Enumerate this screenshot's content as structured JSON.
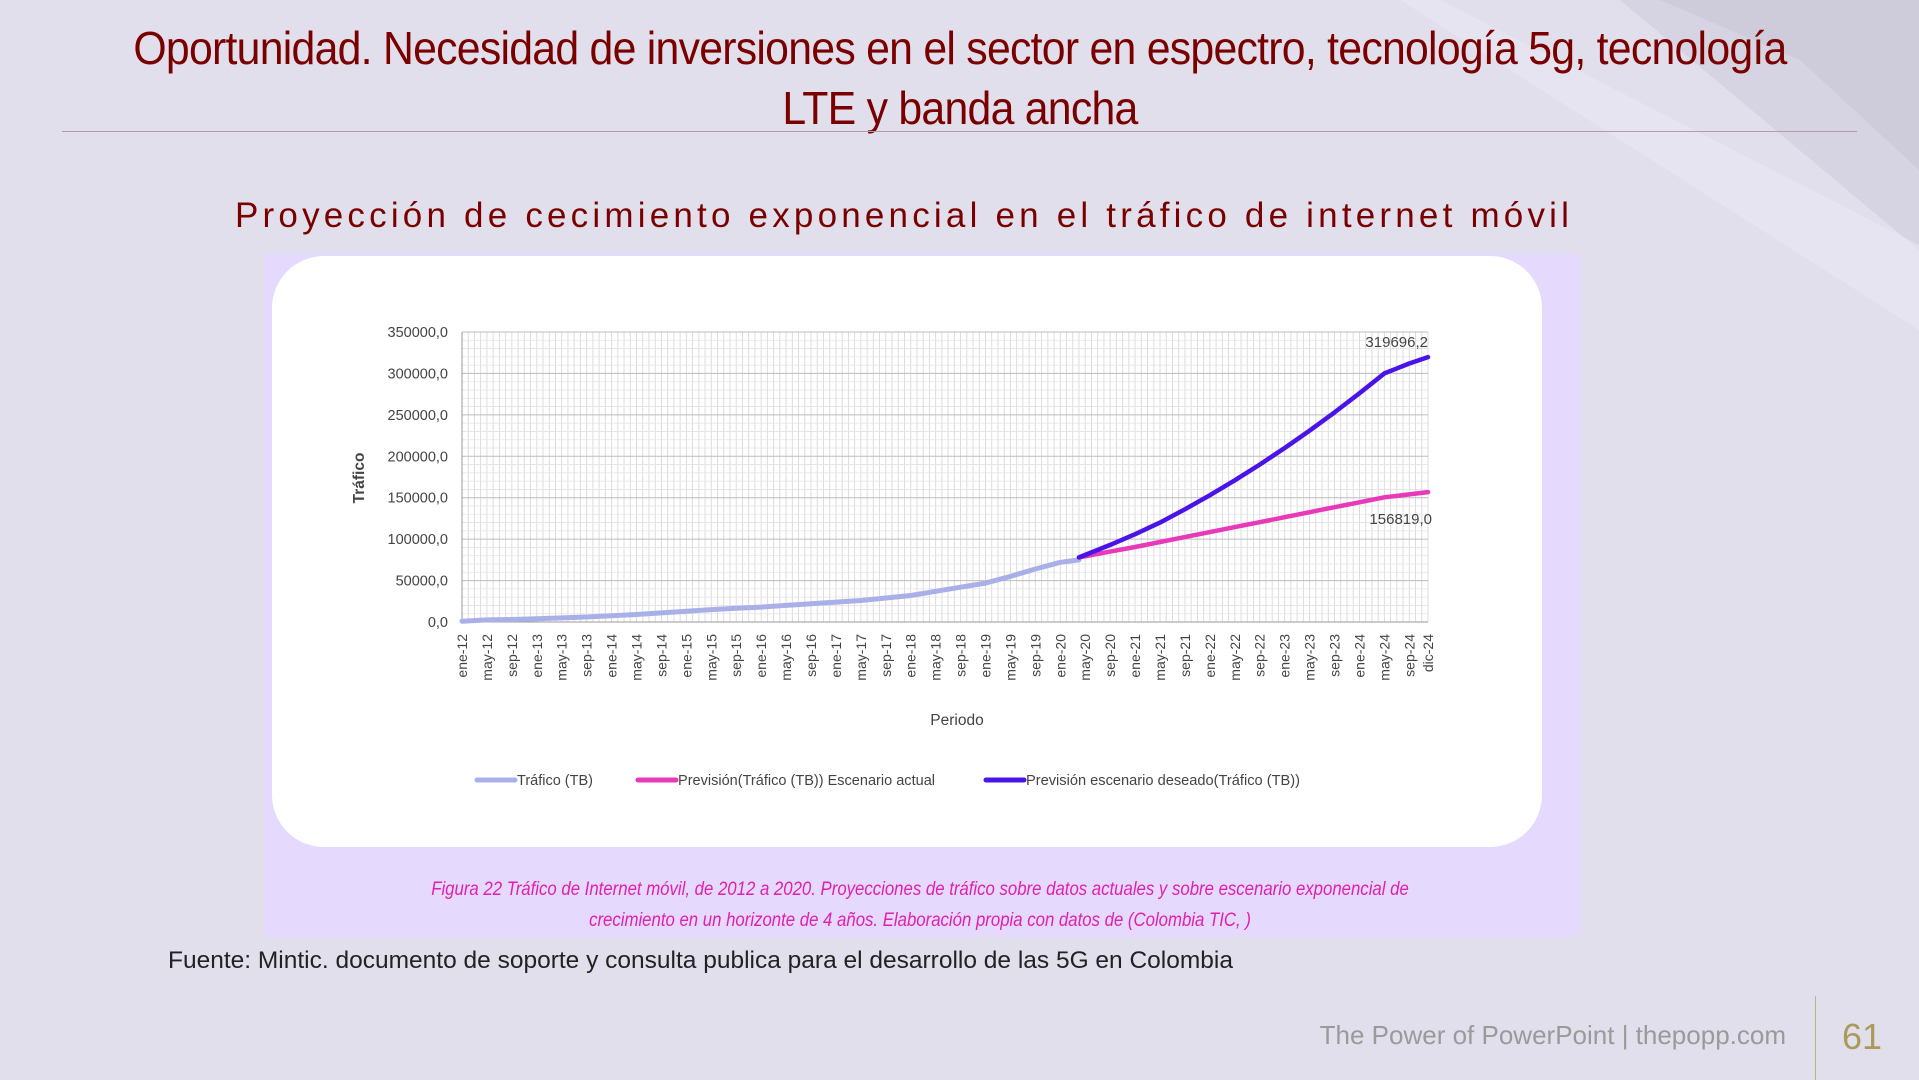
{
  "slide": {
    "title": "Oportunidad. Necesidad de inversiones en el sector en espectro, tecnología 5g, tecnología LTE y banda ancha",
    "subtitle": "Proyección de cecimiento exponencial en el tráfico  de internet móvil",
    "caption": "Figura 22 Tráfico de Internet móvil, de 2012 a 2020. Proyecciones de tráfico sobre datos actuales y sobre escenario exponencial de crecimiento en un horizonte de 4 años. Elaboración propia con datos de (Colombia TIC, )",
    "source": "Fuente: Mintic. documento de soporte y consulta publica para el desarrollo de las 5G en Colombia",
    "footer_brand": "The Power of PowerPoint | thepopp.com",
    "page_number": "61"
  },
  "colors": {
    "title": "#7a0000",
    "background": "#e1dfec",
    "panel": "#e5d9fd",
    "caption": "#e020b0"
  },
  "chart_data": {
    "type": "line",
    "xlabel": "Periodo",
    "ylabel": "Tráfico",
    "ylim": [
      0,
      350000
    ],
    "yticks": [
      "0,0",
      "50000,0",
      "100000,0",
      "150000,0",
      "200000,0",
      "250000,0",
      "300000,0",
      "350000,0"
    ],
    "x_tick_labels": [
      "ene-12",
      "may-12",
      "sep-12",
      "ene-13",
      "may-13",
      "sep-13",
      "ene-14",
      "may-14",
      "sep-14",
      "ene-15",
      "may-15",
      "sep-15",
      "ene-16",
      "may-16",
      "sep-16",
      "ene-17",
      "may-17",
      "sep-17",
      "ene-18",
      "may-18",
      "sep-18",
      "ene-19",
      "may-19",
      "sep-19",
      "ene-20",
      "may-20",
      "sep-20",
      "ene-21",
      "may-21",
      "sep-21",
      "ene-22",
      "may-22",
      "sep-22",
      "ene-23",
      "may-23",
      "sep-23",
      "ene-24",
      "may-24",
      "sep-24",
      "dic-24"
    ],
    "grid": true,
    "legend_position": "bottom",
    "series": [
      {
        "name": "Tráfico (TB)",
        "color": "#a9b0e8",
        "x": [
          "ene-12",
          "may-12",
          "sep-12",
          "ene-13",
          "may-13",
          "sep-13",
          "ene-14",
          "may-14",
          "sep-14",
          "ene-15",
          "may-15",
          "sep-15",
          "ene-16",
          "may-16",
          "sep-16",
          "ene-17",
          "may-17",
          "sep-17",
          "ene-18",
          "may-18",
          "sep-18",
          "ene-19",
          "may-19",
          "sep-19",
          "ene-20",
          "abr-20"
        ],
        "values": [
          1000,
          2500,
          3000,
          4000,
          5000,
          6000,
          7500,
          9000,
          11000,
          13000,
          15000,
          16500,
          18000,
          20000,
          22000,
          24000,
          26000,
          29000,
          32000,
          37000,
          42000,
          47000,
          55000,
          64000,
          72000,
          75000
        ]
      },
      {
        "name": "Previsión(Tráfico (TB)) Escenario actual",
        "color": "#e83ab8",
        "x": [
          "abr-20",
          "sep-20",
          "ene-21",
          "may-21",
          "sep-21",
          "ene-22",
          "may-22",
          "sep-22",
          "ene-23",
          "may-23",
          "sep-23",
          "ene-24",
          "may-24",
          "sep-24",
          "dic-24"
        ],
        "values": [
          78000,
          85000,
          90500,
          96500,
          102500,
          108500,
          114500,
          120500,
          126500,
          132500,
          138500,
          144500,
          150500,
          154000,
          156819
        ]
      },
      {
        "name": "Previsión escenario deseado(Tráfico (TB))",
        "color": "#4a14e8",
        "x": [
          "abr-20",
          "sep-20",
          "ene-21",
          "may-21",
          "sep-21",
          "ene-22",
          "may-22",
          "sep-22",
          "ene-23",
          "may-23",
          "sep-23",
          "ene-24",
          "may-24",
          "sep-24",
          "dic-24"
        ],
        "values": [
          78000,
          93000,
          106000,
          120000,
          136000,
          153000,
          171000,
          190000,
          210000,
          231000,
          253000,
          276000,
          300000,
          312000,
          319696.2
        ]
      }
    ],
    "annotations": [
      {
        "text": "319696,2",
        "series": 2,
        "point": "dic-24"
      },
      {
        "text": "156819,0",
        "series": 1,
        "point": "dic-24"
      }
    ]
  }
}
